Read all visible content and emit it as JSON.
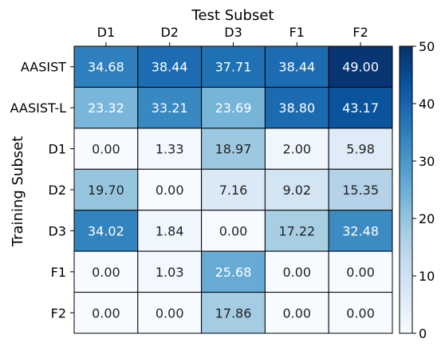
{
  "chart_data": {
    "type": "heatmap",
    "xlabel": "Test Subset",
    "ylabel": "Training Subset",
    "x_categories": [
      "D1",
      "D2",
      "D3",
      "F1",
      "F2"
    ],
    "y_categories": [
      "AASIST",
      "AASIST-L",
      "D1",
      "D2",
      "D3",
      "F1",
      "F2"
    ],
    "values": [
      [
        34.68,
        38.44,
        37.71,
        38.44,
        49.0
      ],
      [
        23.32,
        33.21,
        23.69,
        38.8,
        43.17
      ],
      [
        0.0,
        1.33,
        18.97,
        2.0,
        5.98
      ],
      [
        19.7,
        0.0,
        7.16,
        9.02,
        15.35
      ],
      [
        34.02,
        1.84,
        0.0,
        17.22,
        32.48
      ],
      [
        0.0,
        1.03,
        25.68,
        0.0,
        0.0
      ],
      [
        0.0,
        0.0,
        17.86,
        0.0,
        0.0
      ]
    ],
    "value_labels": [
      [
        "34.68",
        "38.44",
        "37.71",
        "38.44",
        "49.00"
      ],
      [
        "23.32",
        "33.21",
        "23.69",
        "38.80",
        "43.17"
      ],
      [
        "0.00",
        "1.33",
        "18.97",
        "2.00",
        "5.98"
      ],
      [
        "19.70",
        "0.00",
        "7.16",
        "9.02",
        "15.35"
      ],
      [
        "34.02",
        "1.84",
        "0.00",
        "17.22",
        "32.48"
      ],
      [
        "0.00",
        "1.03",
        "25.68",
        "0.00",
        "0.00"
      ],
      [
        "0.00",
        "0.00",
        "17.86",
        "0.00",
        "0.00"
      ]
    ],
    "colorbar": {
      "range": [
        0,
        50
      ],
      "ticks": [
        0,
        10,
        20,
        30,
        40,
        50
      ],
      "tick_labels": [
        "0",
        "10",
        "20",
        "30",
        "40",
        "50"
      ],
      "colormap": "Blues",
      "colors": [
        "#f7fbff",
        "#deebf7",
        "#c6dbef",
        "#9ecae1",
        "#6baed6",
        "#4292c6",
        "#2171b5",
        "#08519c",
        "#08306b"
      ]
    },
    "x_axis_position": "top",
    "grid": false,
    "legend": "colorbar-right"
  }
}
